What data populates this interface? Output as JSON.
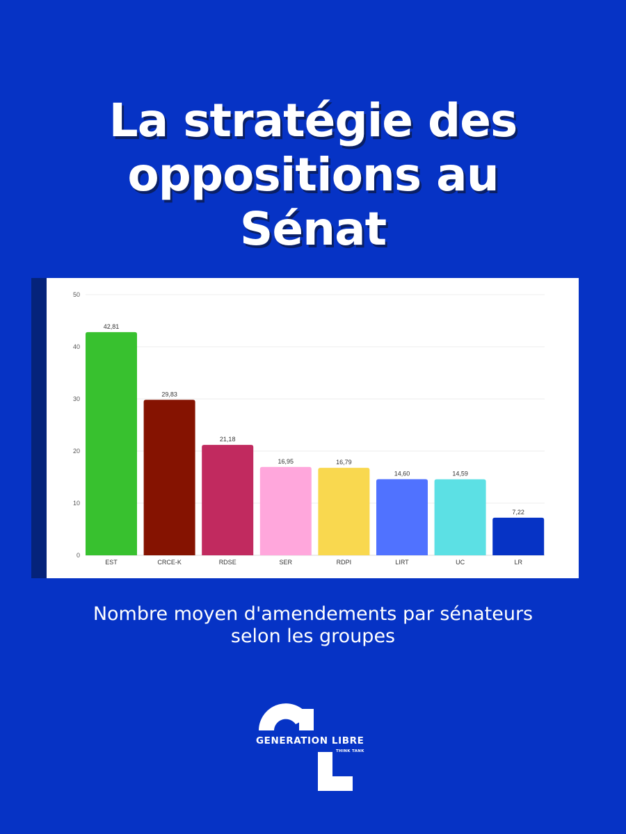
{
  "title": {
    "lines": [
      "La stratégie des",
      "oppositions au",
      "Sénat"
    ]
  },
  "caption": {
    "lines": [
      "Nombre moyen d'amendements par sénateurs",
      "selon les groupes"
    ]
  },
  "logo": {
    "name": "GENERATION LIBRE",
    "tagline": "THINK TANK"
  },
  "colors": {
    "background": "#0633c5",
    "stripe": "#05237a"
  },
  "chart_data": {
    "type": "bar",
    "categories": [
      "EST",
      "CRCE-K",
      "RDSE",
      "SER",
      "RDPI",
      "LIRT",
      "UC",
      "LR"
    ],
    "values": [
      42.81,
      29.83,
      21.18,
      16.95,
      16.79,
      14.6,
      14.59,
      7.22
    ],
    "value_labels": [
      "42,81",
      "29,83",
      "21,18",
      "16,95",
      "16,79",
      "14,60",
      "14,59",
      "7,22"
    ],
    "bar_colors": [
      "#38c12f",
      "#851301",
      "#c12a5f",
      "#ffa7dc",
      "#f9d84f",
      "#5072ff",
      "#5ce0e4",
      "#0633c5"
    ],
    "yticks": [
      0,
      10,
      20,
      30,
      40,
      50
    ],
    "ylim": [
      0,
      50
    ],
    "grid": true,
    "title": "",
    "xlabel": "",
    "ylabel": ""
  }
}
